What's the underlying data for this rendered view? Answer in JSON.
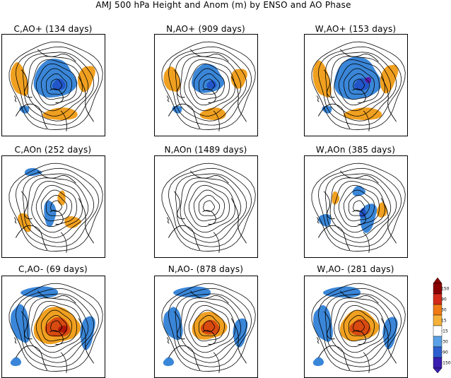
{
  "title": "AMJ 500 hPa Height and Anom (m) by ENSO and AO Phase",
  "panels": [
    {
      "row": 0,
      "col": 0,
      "title": "C,AO+ (134 days)",
      "pattern": "positive",
      "intensity": 1.0
    },
    {
      "row": 0,
      "col": 1,
      "title": "N,AO+ (909 days)",
      "pattern": "positive",
      "intensity": 0.75
    },
    {
      "row": 0,
      "col": 2,
      "title": "W,AO+ (153 days)",
      "pattern": "positive",
      "intensity": 1.1
    },
    {
      "row": 1,
      "col": 0,
      "title": "C,AOn (252 days)",
      "pattern": "neutral-cold",
      "intensity": 0.5
    },
    {
      "row": 1,
      "col": 1,
      "title": "N,AOn (1489 days)",
      "pattern": "neutral",
      "intensity": 0.0
    },
    {
      "row": 1,
      "col": 2,
      "title": "W,AOn (385 days)",
      "pattern": "neutral-warm",
      "intensity": 0.55
    },
    {
      "row": 2,
      "col": 0,
      "title": "C,AO- (69 days)",
      "pattern": "negative",
      "intensity": 1.2
    },
    {
      "row": 2,
      "col": 1,
      "title": "N,AO- (878 days)",
      "pattern": "negative",
      "intensity": 0.9
    },
    {
      "row": 2,
      "col": 2,
      "title": "W,AO- (281 days)",
      "pattern": "negative",
      "intensity": 1.0
    }
  ],
  "colorbar": {
    "labels": [
      "150",
      "90",
      "30",
      "15",
      "-15",
      "-30",
      "-90",
      "-150"
    ],
    "colors": [
      "#8b0000",
      "#d42a1a",
      "#f07a15",
      "#f5b13a",
      "#ffffff",
      "#5aa0e6",
      "#2e5fd0",
      "#3a1fb0"
    ]
  },
  "colors": {
    "positive_anom": "#f0a020",
    "strong_positive": "#d84a10",
    "very_strong_positive": "#b01808",
    "negative_anom": "#3a86d8",
    "strong_negative": "#2255c8",
    "very_strong_negative": "#5a1ea8"
  }
}
